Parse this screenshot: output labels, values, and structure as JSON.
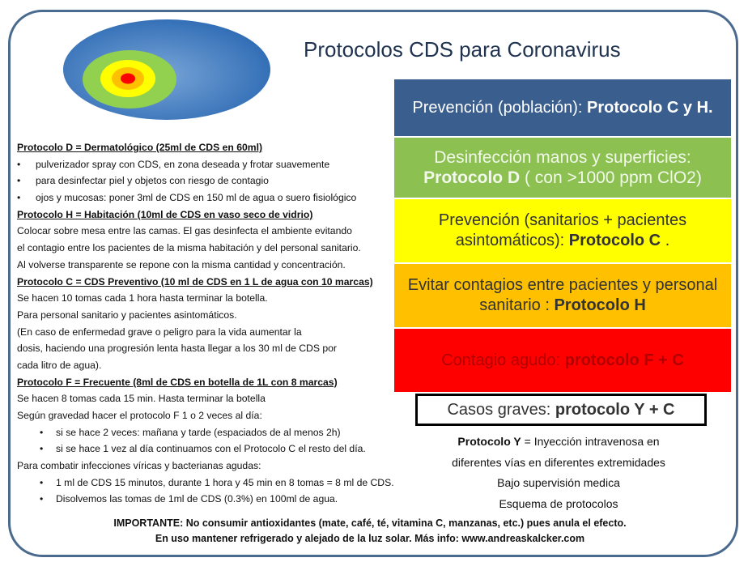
{
  "title": "Protocolos CDS para Coronavirus",
  "colors": {
    "blue": "#3a5f8f",
    "green": "#8cc152",
    "yellow": "#ffff00",
    "orange": "#ffc000",
    "red": "#ff0000",
    "frame": "#4a6a8e"
  },
  "left": [
    {
      "type": "h",
      "text": "Protocolo D = Dermatológico (25ml de CDS en 60ml)"
    },
    {
      "type": "b",
      "text": "pulverizador spray con CDS, en zona deseada y frotar suavemente"
    },
    {
      "type": "b",
      "text": "para desinfectar piel y objetos con riesgo de contagio"
    },
    {
      "type": "b",
      "text": "ojos y mucosas: poner 3ml de CDS en 150 ml de agua o suero fisiológico"
    },
    {
      "type": "h",
      "text": "Protocolo H = Habitación (10ml de CDS en vaso seco de vidrio)"
    },
    {
      "type": "p",
      "text": "Colocar sobre mesa entre las camas. El gas desinfecta el ambiente evitando"
    },
    {
      "type": "p",
      "text": " el contagio entre los pacientes de la misma habitación y del personal sanitario."
    },
    {
      "type": "p",
      "text": "Al volverse transparente se repone con la misma cantidad y concentración."
    },
    {
      "type": "h",
      "text": "Protocolo C = CDS Preventivo (10 ml de CDS en 1 L de agua con 10 marcas)"
    },
    {
      "type": "p",
      "text": "Se hacen 10 tomas cada 1 hora hasta terminar la botella."
    },
    {
      "type": "p",
      "text": "Para personal sanitario y pacientes asintomáticos."
    },
    {
      "type": "p",
      "text": "(En caso de enfermedad grave o peligro para la vida aumentar la"
    },
    {
      "type": "p",
      "text": "dosis, haciendo una progresión lenta hasta llegar a los 30 ml de CDS por"
    },
    {
      "type": "p",
      "text": "cada litro de agua)."
    },
    {
      "type": "h",
      "text": "Protocolo F = Frecuente (8ml de CDS en botella de 1L con 8 marcas)"
    },
    {
      "type": "p",
      "text": "Se hacen 8 tomas cada 15 min. Hasta terminar la botella"
    },
    {
      "type": "p",
      "text": "Según gravedad hacer el protocolo F 1 o 2 veces al día:"
    },
    {
      "type": "b2",
      "text": "si se hace 2 veces: mañana y tarde (espaciados de al menos 2h)"
    },
    {
      "type": "b2",
      "text": "si se hace 1 vez al día continuamos con el Protocolo C el resto del día."
    },
    {
      "type": "p",
      "text": "Para combatir infecciones víricas y bacterianas agudas:"
    },
    {
      "type": "b2",
      "text": "1 ml de CDS 15 minutos, durante 1 hora y 45 min en 8 tomas = 8 ml de CDS."
    },
    {
      "type": "b2",
      "text": "Disolvemos las tomas de 1ml de CDS (0.3%) en 100ml de agua."
    }
  ],
  "bands": [
    {
      "normal": "Prevención (población): ",
      "bold": "Protocolo C y H.",
      "tail": ""
    },
    {
      "normal": "Desinfección manos y superficies: ",
      "bold": "Protocolo D",
      "tail": " ( con >1000 ppm ClO2)"
    },
    {
      "normal": "Prevención (sanitarios + pacientes asintomáticos): ",
      "bold": "Protocolo C",
      "tail": " ."
    },
    {
      "normal": "Evitar contagios entre pacientes y personal sanitario : ",
      "bold": "Protocolo H",
      "tail": ""
    },
    {
      "normal": "Contagio agudo: ",
      "bold": "protocolo F + C",
      "tail": ""
    }
  ],
  "cases": {
    "normal": "Casos graves: ",
    "bold": "protocolo Y + C"
  },
  "protocol_y": {
    "bold": "Protocolo Y",
    "line1": " = Inyección intravenosa en",
    "line2": "diferentes vías en diferentes extremidades",
    "line3": "Bajo supervisión medica",
    "line4": "Esquema de protocolos"
  },
  "footer": {
    "line1": "IMPORTANTE: No consumir antioxidantes  (mate, café, té, vitamina C, manzanas, etc.) pues anula el efecto.",
    "line2": "En uso mantener refrigerado y alejado de la luz solar.  Más info: www.andreaskalcker.com"
  }
}
